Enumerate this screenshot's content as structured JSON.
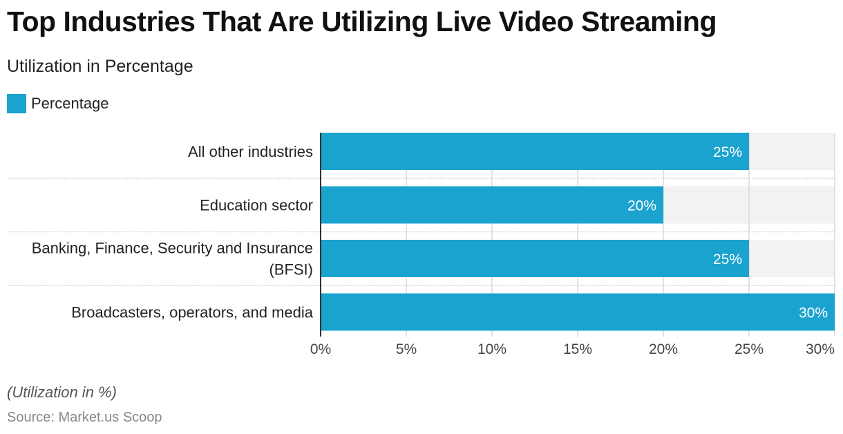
{
  "title": "Top Industries That Are Utilizing Live Video Streaming",
  "subtitle": "Utilization in Percentage",
  "legend": {
    "label": "Percentage",
    "color": "#1ba3cf"
  },
  "footnote": "(Utilization in %)",
  "source": "Source: Market.us Scoop",
  "colors": {
    "bar": "#1ba3cf",
    "track": "#f2f2f2",
    "grid": "#d9d9d9",
    "axis": "#333333"
  },
  "chart_data": {
    "type": "bar",
    "orientation": "horizontal",
    "categories": [
      [
        "All other industries"
      ],
      [
        "Education sector"
      ],
      [
        "Banking, Finance, Security and Insurance",
        "(BFSI)"
      ],
      [
        "Broadcasters, operators, and media"
      ]
    ],
    "series": [
      {
        "name": "Percentage",
        "values": [
          25,
          20,
          25,
          30
        ],
        "labels": [
          "25%",
          "20%",
          "25%",
          "30%"
        ]
      }
    ],
    "xlim": [
      0,
      30
    ],
    "xticks": [
      0,
      5,
      10,
      15,
      20,
      25,
      30
    ],
    "xtick_labels": [
      "0%",
      "5%",
      "10%",
      "15%",
      "20%",
      "25%",
      "30%"
    ],
    "grid": true,
    "legend_position": "top-left"
  }
}
